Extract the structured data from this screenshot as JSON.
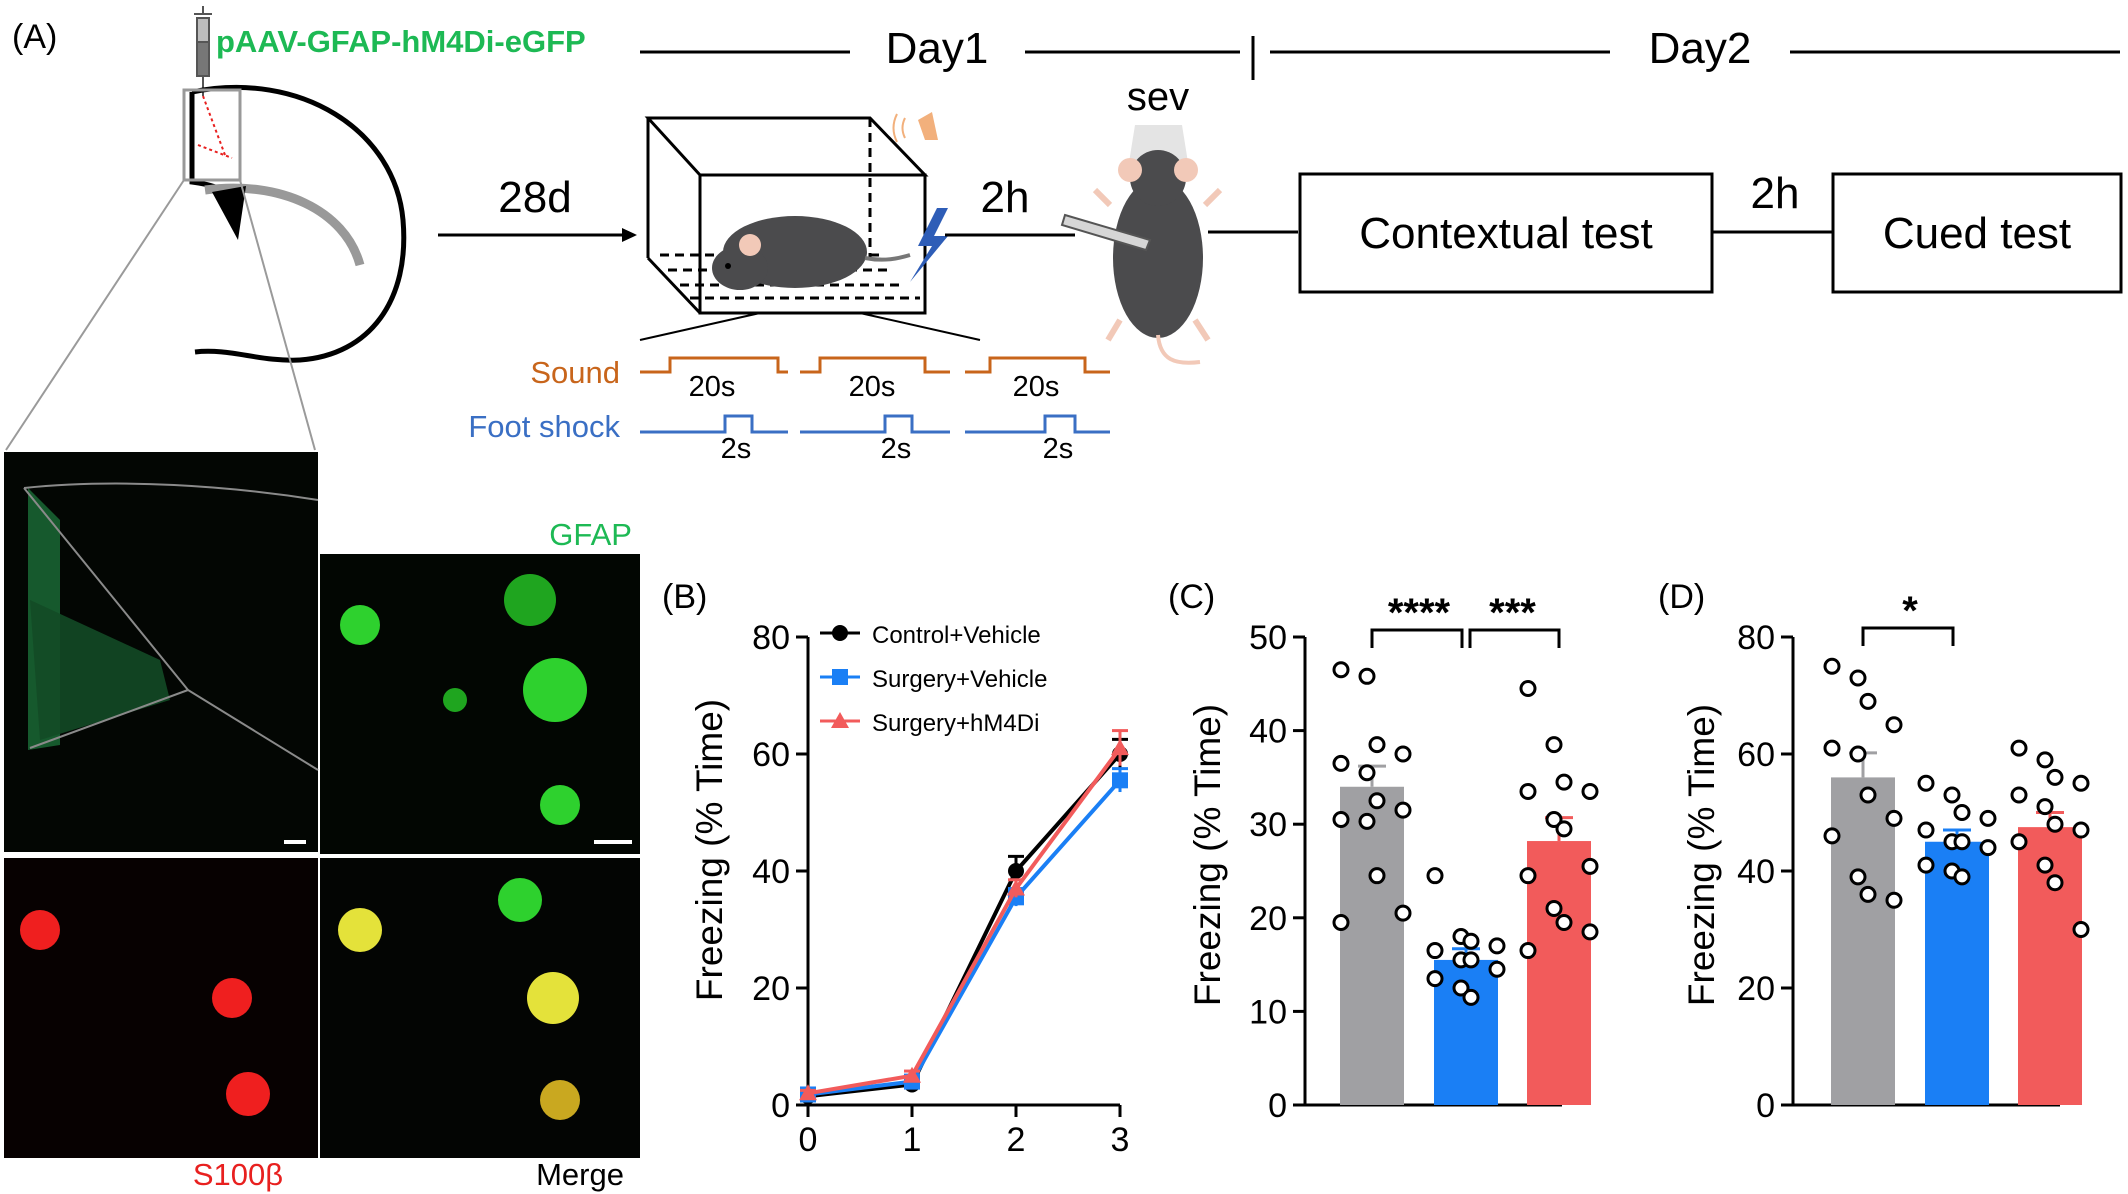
{
  "panel_a": {
    "label": "(A)",
    "virus": "pAAV-GFAP-hM4Di-eGFP",
    "day1": "Day1",
    "day2": "Day2",
    "delay_28d": "28d",
    "delay_2h_a": "2h",
    "delay_2h_b": "2h",
    "sev": "sev",
    "contextual_test": "Contextual test",
    "cued_test": "Cued test",
    "sound_label": "Sound",
    "shock_label": "Foot shock",
    "sound_duration": "20s",
    "shock_duration": "2s",
    "img_gfap": "GFAP",
    "img_s100b": "S100β",
    "img_merge": "Merge",
    "colors": {
      "virus": "#1db954",
      "sound": "#c8651b",
      "shock": "#3a6fc4",
      "s100b": "#e8201f"
    }
  },
  "chart_data": [
    {
      "panel": "(B)",
      "type": "line",
      "ylabel": "Freezing (% Time)",
      "xlabel": "",
      "x": [
        0,
        1,
        2,
        3
      ],
      "xticks": [
        "0",
        "1",
        "2",
        "3"
      ],
      "ylim": [
        0,
        80
      ],
      "yticks": [
        0,
        20,
        40,
        60,
        80
      ],
      "legend_position": "top-left",
      "series": [
        {
          "name": "Control+Vehicle",
          "color": "#000000",
          "marker": "circle",
          "values": [
            1.5,
            3.5,
            40,
            60
          ],
          "err": [
            0.5,
            0.8,
            2.5,
            2.5
          ]
        },
        {
          "name": "Surgery+Vehicle",
          "color": "#1a7ff5",
          "marker": "square",
          "values": [
            1.8,
            4.0,
            35.5,
            55.5
          ],
          "err": [
            0.5,
            0.8,
            1.5,
            2.0
          ]
        },
        {
          "name": "Surgery+hM4Di",
          "color": "#f25b5b",
          "marker": "triangle",
          "values": [
            2.0,
            5.0,
            37,
            61
          ],
          "err": [
            0.5,
            0.8,
            1.5,
            3.0
          ]
        }
      ]
    },
    {
      "panel": "(C)",
      "type": "bar",
      "ylabel": "Freezing (% Time)",
      "ylim": [
        0,
        50
      ],
      "yticks": [
        0,
        10,
        20,
        30,
        40,
        50
      ],
      "series": [
        {
          "color": "#a0a0a3",
          "mean": 34,
          "sem": 2.2,
          "points": [
            46.5,
            45.8,
            38.5,
            37.5,
            36.5,
            35.5,
            32.5,
            31.5,
            30.5,
            30.3,
            24.5,
            20.5,
            19.5
          ]
        },
        {
          "color": "#1a7ff5",
          "mean": 15.5,
          "sem": 1.2,
          "points": [
            24.5,
            18,
            17.5,
            17,
            16.5,
            15.5,
            15.5,
            14.5,
            13.5,
            12.5,
            11.5
          ]
        },
        {
          "color": "#f25b5b",
          "mean": 28.2,
          "sem": 2.5,
          "points": [
            44.5,
            38.5,
            34.5,
            33.5,
            33.5,
            30.5,
            29.5,
            25.5,
            24.5,
            21,
            19.5,
            18.5,
            16.5
          ]
        }
      ],
      "significance": [
        {
          "from": 0,
          "to": 1,
          "label": "****"
        },
        {
          "from": 1,
          "to": 2,
          "label": "***"
        }
      ]
    },
    {
      "panel": "(D)",
      "type": "bar",
      "ylabel": "Freezing (% Time)",
      "ylim": [
        0,
        80
      ],
      "yticks": [
        0,
        20,
        40,
        60,
        80
      ],
      "series": [
        {
          "color": "#a0a0a3",
          "mean": 56,
          "sem": 4.2,
          "points": [
            75,
            73,
            69,
            65,
            61,
            60,
            53,
            49,
            46,
            39,
            36,
            35
          ]
        },
        {
          "color": "#1a7ff5",
          "mean": 45,
          "sem": 2.0,
          "points": [
            55,
            53,
            50,
            49,
            47,
            45,
            45,
            44,
            41,
            40,
            39
          ]
        },
        {
          "color": "#f25b5b",
          "mean": 47.5,
          "sem": 2.5,
          "points": [
            61,
            59,
            56,
            55,
            53,
            51,
            48,
            47,
            45,
            41,
            38,
            30
          ]
        }
      ],
      "significance": [
        {
          "from": 0,
          "to": 1,
          "label": "*"
        }
      ]
    }
  ]
}
